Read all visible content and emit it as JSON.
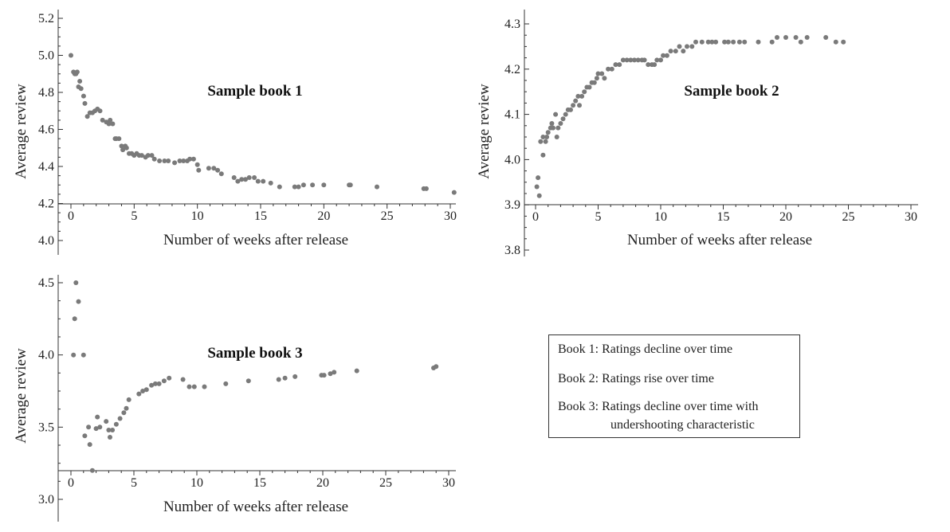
{
  "chart_data": [
    {
      "type": "scatter",
      "title": "Sample book 1",
      "xlabel": "Number of weeks after release",
      "ylabel": "Average review",
      "xlim": [
        0,
        30
      ],
      "ylim": [
        3.95,
        5.22
      ],
      "x_ticks": [
        "0",
        "5",
        "10",
        "15",
        "20",
        "25",
        "30"
      ],
      "y_ticks": [
        "4.0",
        "4.2",
        "4.4",
        "4.6",
        "4.8",
        "5.0",
        "5.2"
      ],
      "marker_color": "#7a7a7a",
      "points": [
        [
          0,
          5.0
        ],
        [
          0.2,
          4.91
        ],
        [
          0.3,
          4.9
        ],
        [
          0.4,
          4.9
        ],
        [
          0.5,
          4.91
        ],
        [
          0.6,
          4.83
        ],
        [
          0.7,
          4.86
        ],
        [
          0.8,
          4.82
        ],
        [
          1.0,
          4.78
        ],
        [
          1.1,
          4.74
        ],
        [
          1.3,
          4.67
        ],
        [
          1.5,
          4.69
        ],
        [
          1.7,
          4.69
        ],
        [
          1.9,
          4.7
        ],
        [
          2.1,
          4.71
        ],
        [
          2.3,
          4.7
        ],
        [
          2.5,
          4.65
        ],
        [
          2.8,
          4.64
        ],
        [
          3.0,
          4.63
        ],
        [
          3.1,
          4.65
        ],
        [
          3.3,
          4.63
        ],
        [
          3.5,
          4.55
        ],
        [
          3.6,
          4.55
        ],
        [
          3.8,
          4.55
        ],
        [
          4.0,
          4.51
        ],
        [
          4.1,
          4.49
        ],
        [
          4.3,
          4.51
        ],
        [
          4.4,
          4.5
        ],
        [
          4.6,
          4.47
        ],
        [
          4.8,
          4.47
        ],
        [
          5.0,
          4.46
        ],
        [
          5.2,
          4.47
        ],
        [
          5.4,
          4.46
        ],
        [
          5.6,
          4.46
        ],
        [
          5.9,
          4.45
        ],
        [
          6.1,
          4.46
        ],
        [
          6.4,
          4.46
        ],
        [
          6.6,
          4.44
        ],
        [
          7.0,
          4.43
        ],
        [
          7.4,
          4.43
        ],
        [
          7.7,
          4.43
        ],
        [
          8.2,
          4.42
        ],
        [
          8.6,
          4.43
        ],
        [
          8.9,
          4.43
        ],
        [
          9.2,
          4.43
        ],
        [
          9.4,
          4.44
        ],
        [
          9.7,
          4.44
        ],
        [
          10.0,
          4.41
        ],
        [
          10.1,
          4.38
        ],
        [
          10.9,
          4.39
        ],
        [
          11.3,
          4.39
        ],
        [
          11.6,
          4.38
        ],
        [
          11.9,
          4.36
        ],
        [
          12.9,
          4.34
        ],
        [
          13.2,
          4.32
        ],
        [
          13.5,
          4.33
        ],
        [
          13.8,
          4.33
        ],
        [
          14.1,
          4.34
        ],
        [
          14.5,
          4.34
        ],
        [
          14.8,
          4.32
        ],
        [
          15.2,
          4.32
        ],
        [
          15.8,
          4.31
        ],
        [
          16.5,
          4.29
        ],
        [
          17.7,
          4.29
        ],
        [
          18.0,
          4.29
        ],
        [
          18.4,
          4.3
        ],
        [
          19.1,
          4.3
        ],
        [
          20.0,
          4.3
        ],
        [
          22.0,
          4.3
        ],
        [
          22.1,
          4.3
        ],
        [
          24.2,
          4.29
        ],
        [
          27.9,
          4.28
        ],
        [
          28.1,
          4.28
        ],
        [
          30.3,
          4.26
        ]
      ]
    },
    {
      "type": "scatter",
      "title": "Sample book 2",
      "xlabel": "Number of weeks after release",
      "ylabel": "Average review",
      "xlim": [
        0,
        30
      ],
      "ylim": [
        3.78,
        4.33
      ],
      "x_ticks": [
        "0",
        "5",
        "10",
        "15",
        "20",
        "25",
        "30"
      ],
      "y_ticks": [
        "3.8",
        "3.9",
        "4.0",
        "4.1",
        "4.2",
        "4.3"
      ],
      "marker_color": "#7a7a7a",
      "points": [
        [
          0.1,
          3.94
        ],
        [
          0.2,
          3.96
        ],
        [
          0.3,
          3.92
        ],
        [
          0.4,
          4.04
        ],
        [
          0.6,
          4.01
        ],
        [
          0.6,
          4.05
        ],
        [
          0.8,
          4.04
        ],
        [
          0.9,
          4.05
        ],
        [
          1.0,
          4.06
        ],
        [
          1.2,
          4.07
        ],
        [
          1.3,
          4.08
        ],
        [
          1.4,
          4.07
        ],
        [
          1.6,
          4.1
        ],
        [
          1.7,
          4.05
        ],
        [
          1.8,
          4.07
        ],
        [
          2.0,
          4.08
        ],
        [
          2.2,
          4.09
        ],
        [
          2.4,
          4.1
        ],
        [
          2.6,
          4.11
        ],
        [
          2.8,
          4.11
        ],
        [
          3.0,
          4.12
        ],
        [
          3.2,
          4.13
        ],
        [
          3.4,
          4.14
        ],
        [
          3.5,
          4.12
        ],
        [
          3.7,
          4.14
        ],
        [
          3.9,
          4.15
        ],
        [
          4.1,
          4.16
        ],
        [
          4.3,
          4.16
        ],
        [
          4.5,
          4.17
        ],
        [
          4.7,
          4.17
        ],
        [
          4.9,
          4.18
        ],
        [
          5.0,
          4.19
        ],
        [
          5.3,
          4.19
        ],
        [
          5.5,
          4.18
        ],
        [
          5.8,
          4.2
        ],
        [
          6.1,
          4.2
        ],
        [
          6.4,
          4.21
        ],
        [
          6.7,
          4.21
        ],
        [
          7.0,
          4.22
        ],
        [
          7.3,
          4.22
        ],
        [
          7.6,
          4.22
        ],
        [
          7.9,
          4.22
        ],
        [
          8.2,
          4.22
        ],
        [
          8.5,
          4.22
        ],
        [
          8.7,
          4.22
        ],
        [
          9.0,
          4.21
        ],
        [
          9.3,
          4.21
        ],
        [
          9.5,
          4.21
        ],
        [
          9.7,
          4.22
        ],
        [
          10.0,
          4.22
        ],
        [
          10.2,
          4.23
        ],
        [
          10.5,
          4.23
        ],
        [
          10.8,
          4.24
        ],
        [
          11.2,
          4.24
        ],
        [
          11.5,
          4.25
        ],
        [
          11.8,
          4.24
        ],
        [
          12.1,
          4.25
        ],
        [
          12.5,
          4.25
        ],
        [
          12.8,
          4.26
        ],
        [
          13.3,
          4.26
        ],
        [
          13.8,
          4.26
        ],
        [
          14.1,
          4.26
        ],
        [
          14.4,
          4.26
        ],
        [
          15.1,
          4.26
        ],
        [
          15.4,
          4.26
        ],
        [
          15.8,
          4.26
        ],
        [
          16.3,
          4.26
        ],
        [
          16.7,
          4.26
        ],
        [
          17.8,
          4.26
        ],
        [
          18.9,
          4.26
        ],
        [
          19.3,
          4.27
        ],
        [
          20.0,
          4.27
        ],
        [
          20.8,
          4.27
        ],
        [
          21.2,
          4.26
        ],
        [
          21.7,
          4.27
        ],
        [
          23.2,
          4.27
        ],
        [
          24.0,
          4.26
        ],
        [
          24.6,
          4.26
        ]
      ]
    },
    {
      "type": "scatter",
      "title": "Sample book 3",
      "xlabel": "Number of weeks after release",
      "ylabel": "Average review",
      "xlim": [
        0,
        30
      ],
      "ylim": [
        2.85,
        4.55
      ],
      "x_ticks": [
        "0",
        "5",
        "10",
        "15",
        "20",
        "25",
        "30"
      ],
      "y_ticks": [
        "3.0",
        "3.5",
        "4.0",
        "4.5"
      ],
      "marker_color": "#7a7a7a",
      "points": [
        [
          0.2,
          4.0
        ],
        [
          0.3,
          4.25
        ],
        [
          0.4,
          4.5
        ],
        [
          0.6,
          4.37
        ],
        [
          1.0,
          4.0
        ],
        [
          1.1,
          3.44
        ],
        [
          1.4,
          3.5
        ],
        [
          1.5,
          3.38
        ],
        [
          1.7,
          3.2
        ],
        [
          2.0,
          3.49
        ],
        [
          2.1,
          3.57
        ],
        [
          2.3,
          3.5
        ],
        [
          2.8,
          3.54
        ],
        [
          3.0,
          3.48
        ],
        [
          3.1,
          3.43
        ],
        [
          3.3,
          3.48
        ],
        [
          3.6,
          3.52
        ],
        [
          3.9,
          3.56
        ],
        [
          4.2,
          3.6
        ],
        [
          4.4,
          3.63
        ],
        [
          4.6,
          3.69
        ],
        [
          5.4,
          3.73
        ],
        [
          5.7,
          3.75
        ],
        [
          6.0,
          3.76
        ],
        [
          6.4,
          3.79
        ],
        [
          6.7,
          3.8
        ],
        [
          7.0,
          3.8
        ],
        [
          7.4,
          3.82
        ],
        [
          7.8,
          3.84
        ],
        [
          8.9,
          3.83
        ],
        [
          9.4,
          3.78
        ],
        [
          9.8,
          3.78
        ],
        [
          10.6,
          3.78
        ],
        [
          12.3,
          3.8
        ],
        [
          14.1,
          3.82
        ],
        [
          16.5,
          3.83
        ],
        [
          17.0,
          3.84
        ],
        [
          17.8,
          3.85
        ],
        [
          19.9,
          3.86
        ],
        [
          20.1,
          3.86
        ],
        [
          20.6,
          3.87
        ],
        [
          20.9,
          3.88
        ],
        [
          22.7,
          3.89
        ],
        [
          28.8,
          3.91
        ],
        [
          29.0,
          3.92
        ]
      ]
    }
  ],
  "legend": {
    "line1": "Book 1: Ratings decline over time",
    "line2": "Book 2: Ratings rise over time",
    "line3a": "Book 3: Ratings decline over time with",
    "line3b": "undershooting characteristic"
  }
}
